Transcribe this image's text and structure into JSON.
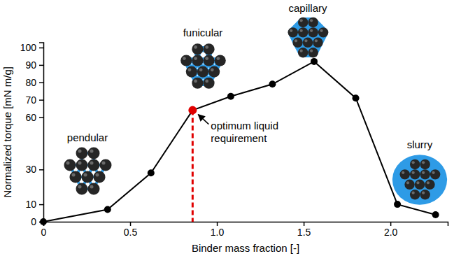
{
  "chart_data": {
    "type": "line",
    "x_label": "Binder mass fraction [-]",
    "y_label": "Normalized torque [mN m/g]",
    "x": [
      0,
      0.37,
      0.62,
      0.86,
      1.08,
      1.32,
      1.56,
      1.8,
      2.04,
      2.26
    ],
    "values": [
      0,
      7,
      28,
      64,
      72,
      79,
      92,
      71,
      10,
      4
    ],
    "color": "#000000",
    "marker": "circle",
    "highlight": {
      "index": 3,
      "color": "#e00000",
      "label": "optimum liquid requirement"
    },
    "annotations": [
      "pendular",
      "funicular",
      "capillary",
      "slurry"
    ],
    "xlim": [
      0,
      2.33
    ],
    "ylim": [
      0,
      103
    ],
    "xticks": [
      0,
      0.5,
      {
        "value": 1,
        "label": "1.0"
      },
      1.5,
      {
        "value": 2,
        "label": "2.0"
      }
    ],
    "yticks": [
      0,
      10,
      30,
      60,
      70,
      80,
      90,
      100
    ],
    "grid": false
  }
}
